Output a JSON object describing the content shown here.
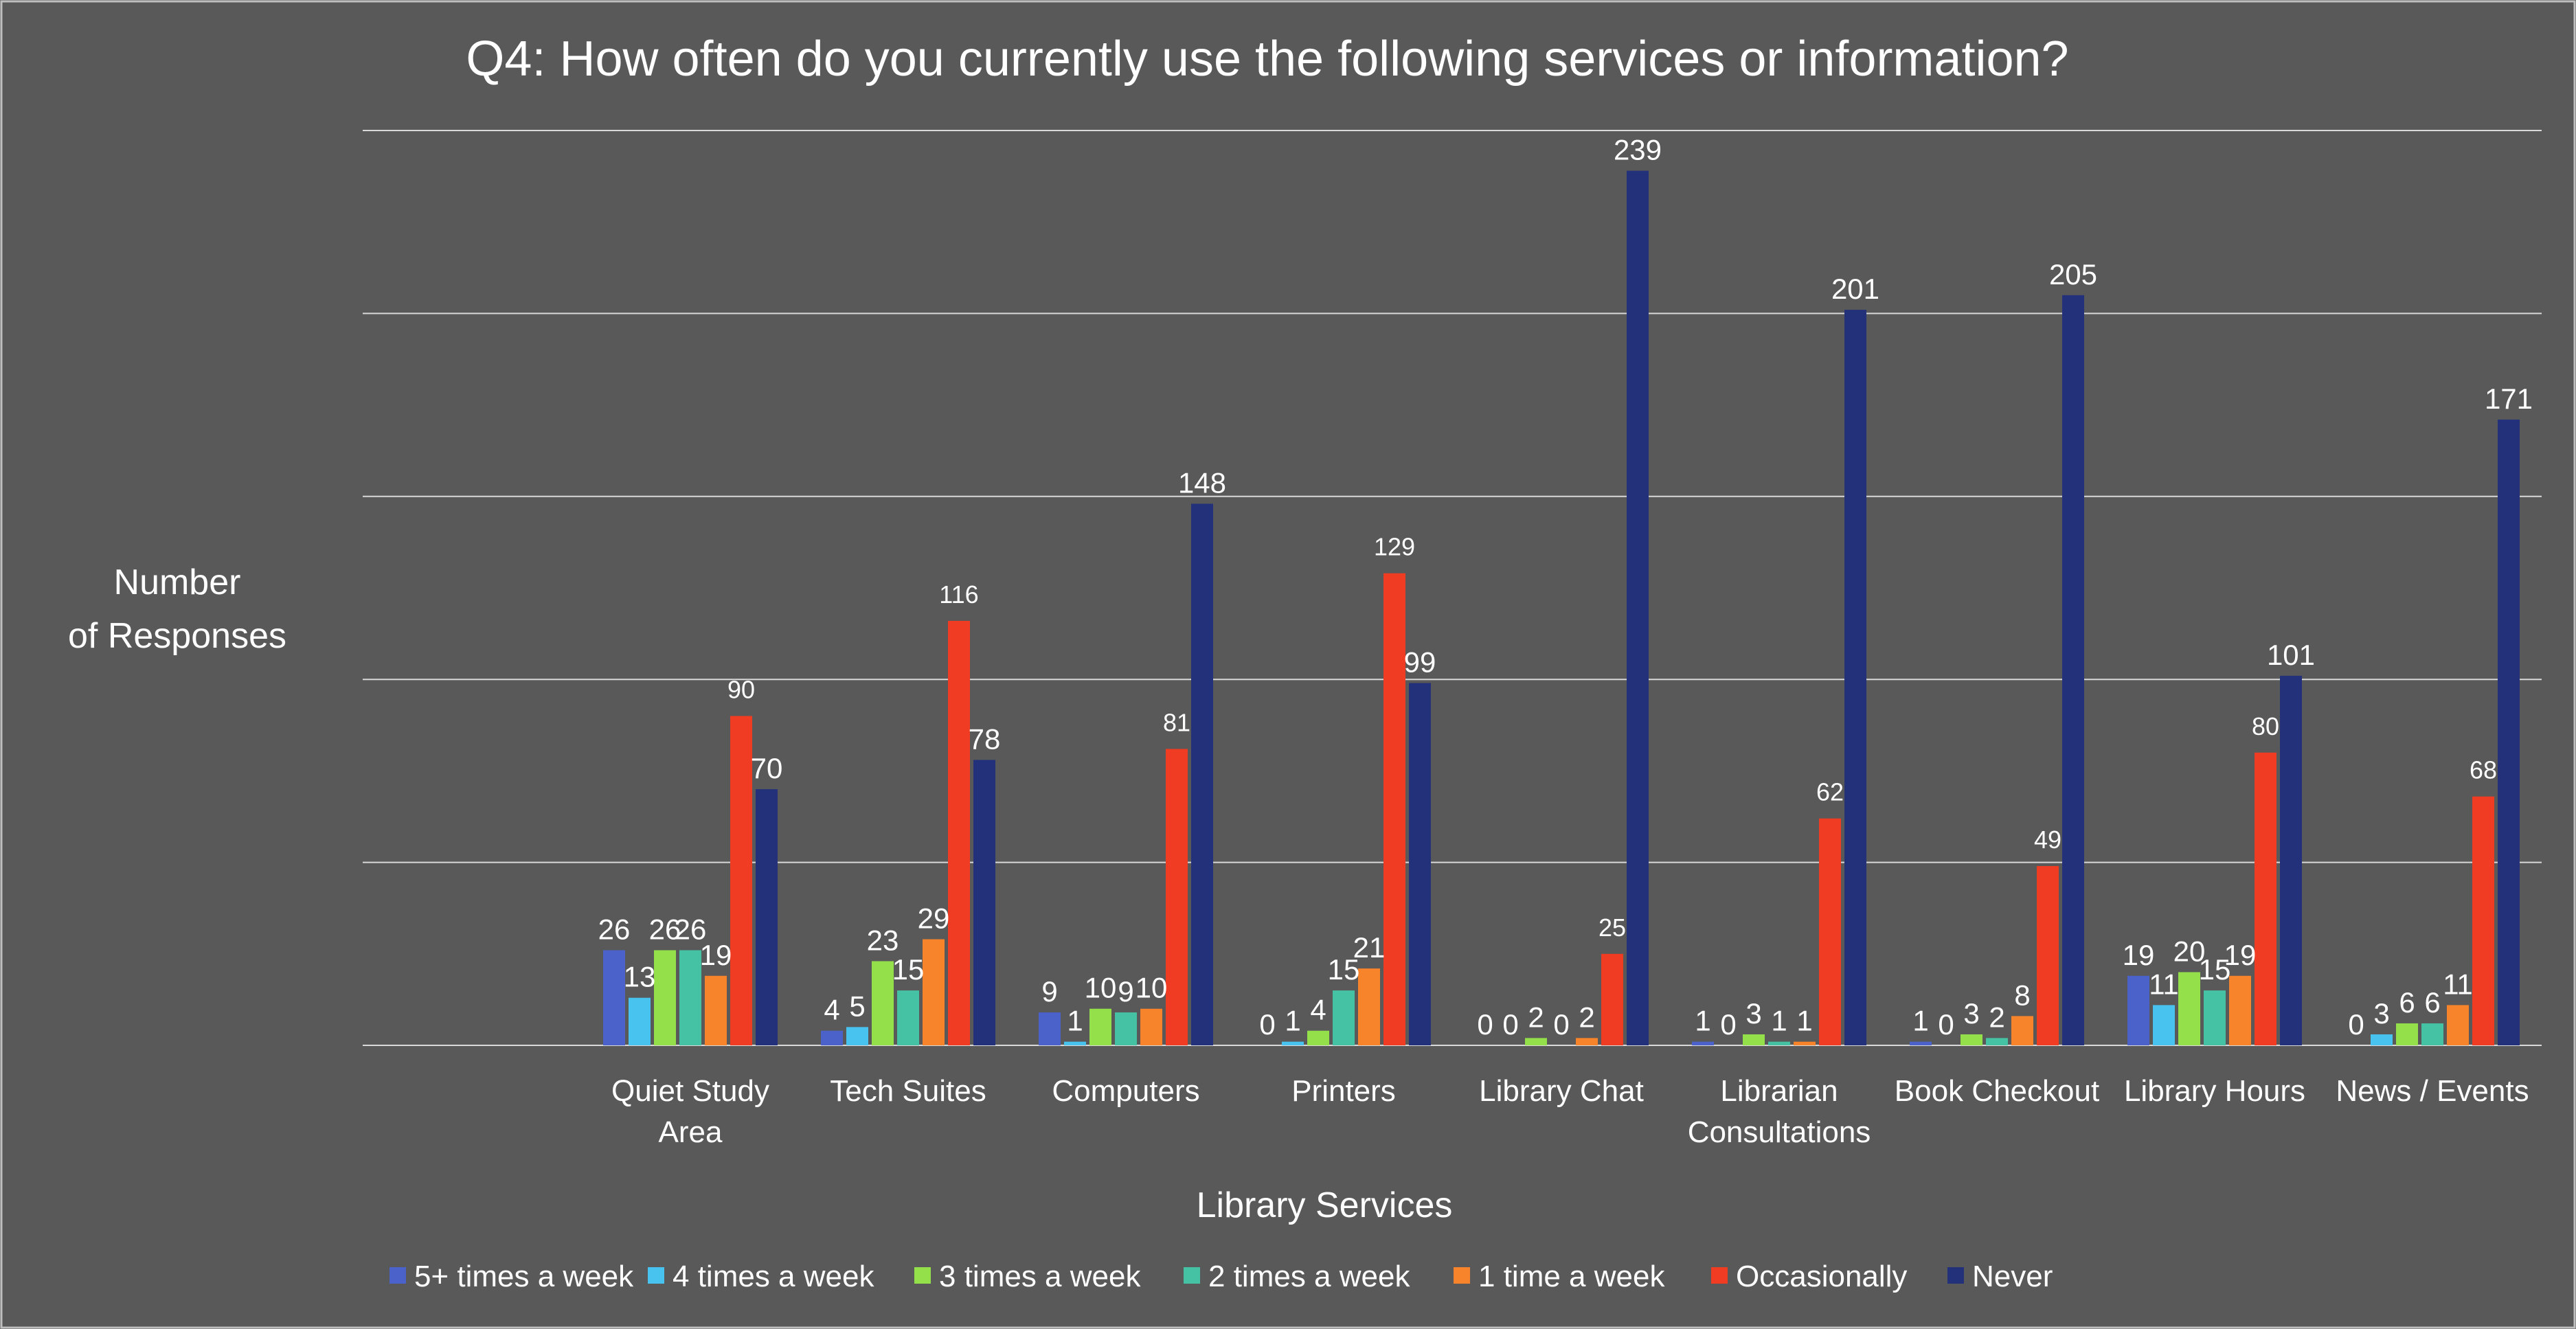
{
  "chart_data": {
    "type": "bar",
    "title": "Q4: How often do you currently use the following services or information?",
    "xlabel": "Library Services",
    "ylabel": [
      "Number",
      "of Responses"
    ],
    "ylim": [
      0,
      250
    ],
    "grid": true,
    "legend_position": "bottom",
    "categories": [
      [
        "Quiet Study",
        "Area"
      ],
      [
        "Tech Suites"
      ],
      [
        "Computers"
      ],
      [
        "Printers"
      ],
      [
        "Library Chat"
      ],
      [
        "Librarian",
        "Consultations"
      ],
      [
        "Book Checkout"
      ],
      [
        "Library Hours"
      ],
      [
        "News / Events"
      ]
    ],
    "series": [
      {
        "name": "5+ times a week",
        "color": "#4a62c9",
        "values": [
          26,
          4,
          9,
          0,
          0,
          1,
          1,
          19,
          0
        ]
      },
      {
        "name": "4 times a week",
        "color": "#48c3f0",
        "values": [
          13,
          5,
          1,
          1,
          0,
          0,
          0,
          11,
          3
        ]
      },
      {
        "name": "3 times a week",
        "color": "#93e04a",
        "values": [
          26,
          23,
          10,
          4,
          2,
          3,
          3,
          20,
          6
        ]
      },
      {
        "name": "2 times a week",
        "color": "#45c1a4",
        "values": [
          26,
          15,
          9,
          15,
          0,
          1,
          2,
          15,
          6
        ]
      },
      {
        "name": "1 time a week",
        "color": "#f7832a",
        "values": [
          19,
          29,
          10,
          21,
          2,
          1,
          8,
          19,
          11
        ]
      },
      {
        "name": "Occasionally",
        "color": "#f03c23",
        "values": [
          90,
          116,
          81,
          129,
          25,
          62,
          49,
          80,
          68
        ]
      },
      {
        "name": "Never",
        "color": "#22317a",
        "values": [
          70,
          78,
          148,
          99,
          239,
          201,
          205,
          101,
          171
        ]
      }
    ]
  }
}
